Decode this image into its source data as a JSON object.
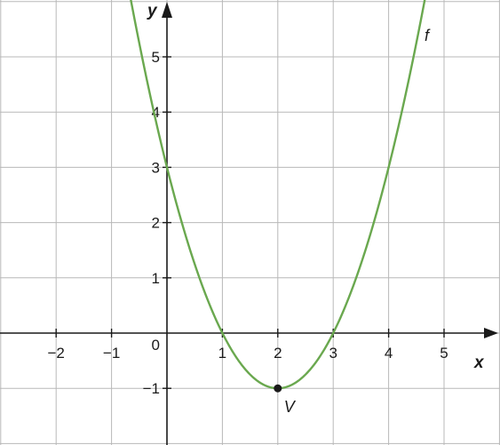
{
  "chart_data": {
    "type": "line",
    "xlabel": "x",
    "ylabel": "y",
    "xlim": [
      -3,
      6
    ],
    "ylim": [
      -2,
      6
    ],
    "grid": true,
    "x_ticks": [
      -2,
      -1,
      1,
      2,
      3,
      4,
      5
    ],
    "x_tick_labels": [
      "−2",
      "−1",
      "1",
      "2",
      "3",
      "4",
      "5"
    ],
    "y_ticks": [
      -1,
      1,
      2,
      3,
      4,
      5
    ],
    "y_tick_labels": [
      "−1",
      "1",
      "2",
      "3",
      "4",
      "5"
    ],
    "origin_label": "0",
    "series": [
      {
        "name": "f",
        "function": "(x-2)^2-1",
        "x": [
          -0.7,
          -0.5,
          0,
          0.5,
          1,
          1.5,
          2,
          2.5,
          3,
          3.5,
          4,
          4.5,
          4.7
        ],
        "y": [
          6.29,
          5.25,
          3,
          1.25,
          0,
          -0.75,
          -1,
          -0.75,
          0,
          1.25,
          3,
          5.25,
          6.29
        ],
        "color": "#6aa84f"
      }
    ],
    "points": [
      {
        "label": "V",
        "x": 2,
        "y": -1,
        "color": "#1a1a1a"
      }
    ]
  }
}
